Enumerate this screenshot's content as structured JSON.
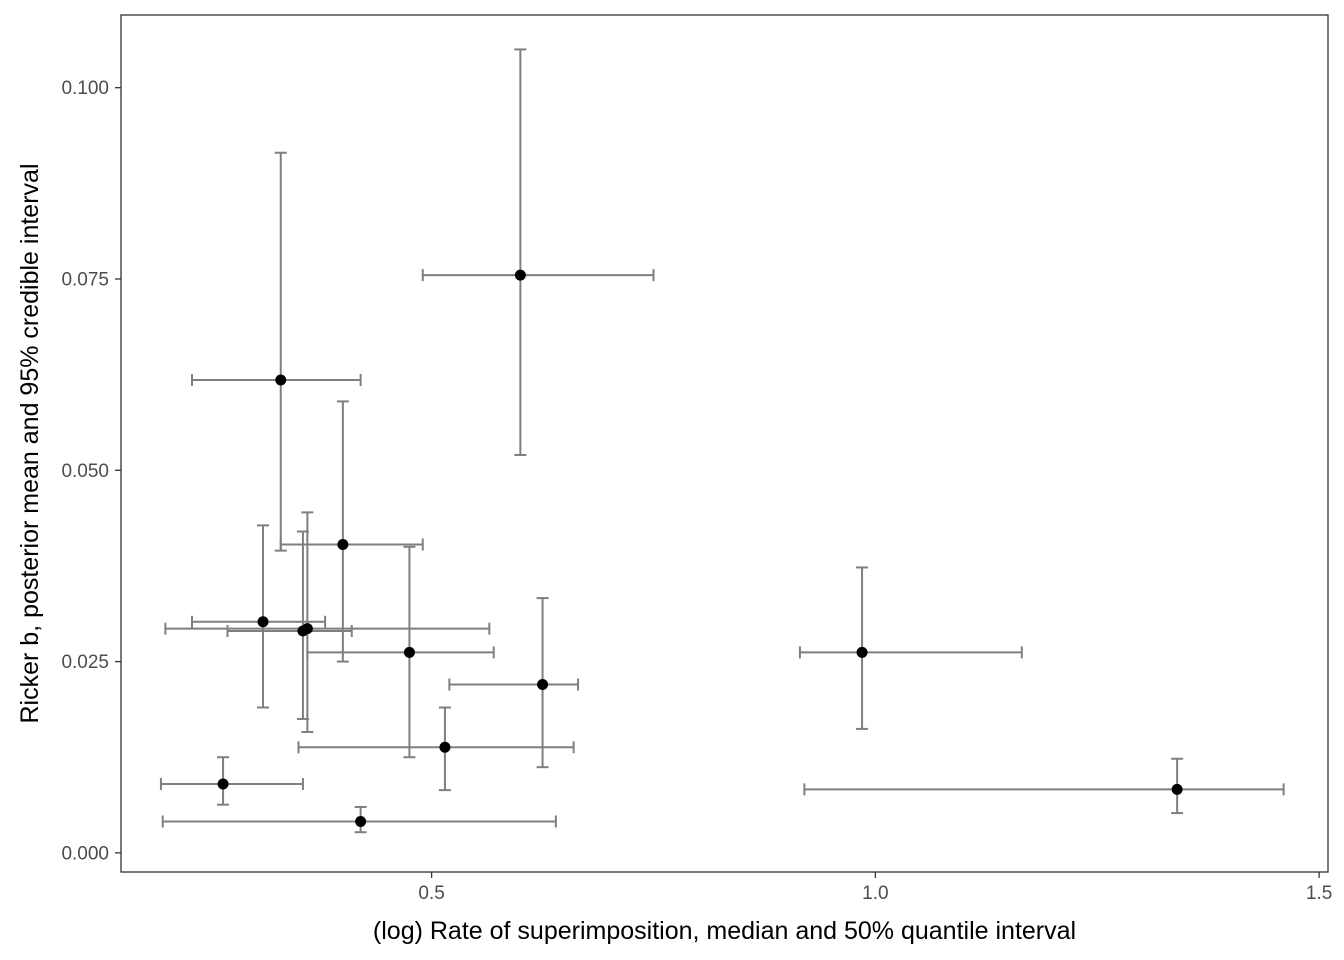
{
  "chart_data": {
    "type": "scatter",
    "title": "",
    "xlabel": "(log) Rate of superimposition, median and 50% quantile interval",
    "ylabel": "Ricker b, posterior mean and 95% credible interval",
    "xlim": [
      0.15,
      1.51
    ],
    "ylim": [
      -0.0025,
      0.1095
    ],
    "x_ticks": [
      0.5,
      1.0,
      1.5
    ],
    "x_tick_labels": [
      "0.5",
      "1.0",
      "1.5"
    ],
    "y_ticks": [
      0.0,
      0.025,
      0.05,
      0.075,
      0.1
    ],
    "y_tick_labels": [
      "0.000",
      "0.025",
      "0.050",
      "0.075",
      "0.100"
    ],
    "grid": false,
    "points": [
      {
        "x": 0.6,
        "x_low": 0.49,
        "x_high": 0.75,
        "y": 0.0755,
        "y_low": 0.052,
        "y_high": 0.105
      },
      {
        "x": 0.33,
        "x_low": 0.23,
        "x_high": 0.42,
        "y": 0.0618,
        "y_low": 0.0395,
        "y_high": 0.0915
      },
      {
        "x": 0.4,
        "x_low": 0.33,
        "x_high": 0.49,
        "y": 0.0403,
        "y_low": 0.025,
        "y_high": 0.059
      },
      {
        "x": 0.31,
        "x_low": 0.23,
        "x_high": 0.38,
        "y": 0.0302,
        "y_low": 0.019,
        "y_high": 0.0428
      },
      {
        "x": 0.355,
        "x_low": 0.27,
        "x_high": 0.41,
        "y": 0.029,
        "y_low": 0.0175,
        "y_high": 0.042
      },
      {
        "x": 0.36,
        "x_low": 0.2,
        "x_high": 0.565,
        "y": 0.0293,
        "y_low": 0.0158,
        "y_high": 0.0445
      },
      {
        "x": 0.475,
        "x_low": 0.36,
        "x_high": 0.57,
        "y": 0.0262,
        "y_low": 0.0125,
        "y_high": 0.04
      },
      {
        "x": 0.625,
        "x_low": 0.52,
        "x_high": 0.665,
        "y": 0.022,
        "y_low": 0.0112,
        "y_high": 0.0333
      },
      {
        "x": 0.515,
        "x_low": 0.35,
        "x_high": 0.66,
        "y": 0.0138,
        "y_low": 0.0082,
        "y_high": 0.019
      },
      {
        "x": 0.265,
        "x_low": 0.195,
        "x_high": 0.355,
        "y": 0.009,
        "y_low": 0.0063,
        "y_high": 0.0125
      },
      {
        "x": 0.42,
        "x_low": 0.197,
        "x_high": 0.64,
        "y": 0.0041,
        "y_low": 0.0027,
        "y_high": 0.006
      },
      {
        "x": 0.985,
        "x_low": 0.915,
        "x_high": 1.165,
        "y": 0.0262,
        "y_low": 0.0162,
        "y_high": 0.0373
      },
      {
        "x": 1.34,
        "x_low": 0.92,
        "x_high": 1.46,
        "y": 0.0083,
        "y_low": 0.0052,
        "y_high": 0.0123
      }
    ]
  }
}
